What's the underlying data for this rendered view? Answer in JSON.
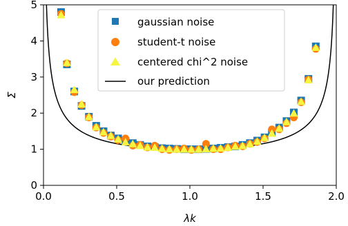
{
  "chart_data": {
    "type": "scatter",
    "title": "",
    "xlabel": "λk",
    "ylabel": "Σ",
    "xlim": [
      0.0,
      2.0
    ],
    "ylim": [
      0,
      5
    ],
    "x_ticks": [
      0.0,
      0.5,
      1.0,
      1.5,
      2.0
    ],
    "x_tick_labels": [
      "0.0",
      "0.5",
      "1.0",
      "1.5",
      "2.0"
    ],
    "y_ticks": [
      0,
      1,
      2,
      3,
      4,
      5
    ],
    "y_tick_labels": [
      "0",
      "1",
      "2",
      "3",
      "4",
      "5"
    ],
    "grid": false,
    "legend_position": "top-center",
    "series": [
      {
        "name": "gaussian noise",
        "marker": "square",
        "color": "#1f77b4",
        "points": [
          [
            0.12,
            4.8
          ],
          [
            0.16,
            3.35
          ],
          [
            0.21,
            2.6
          ],
          [
            0.26,
            2.2
          ],
          [
            0.31,
            1.9
          ],
          [
            0.36,
            1.65
          ],
          [
            0.41,
            1.5
          ],
          [
            0.46,
            1.38
          ],
          [
            0.51,
            1.3
          ],
          [
            0.56,
            1.22
          ],
          [
            0.61,
            1.17
          ],
          [
            0.66,
            1.12
          ],
          [
            0.71,
            1.08
          ],
          [
            0.76,
            1.06
          ],
          [
            0.81,
            1.03
          ],
          [
            0.86,
            1.02
          ],
          [
            0.91,
            1.01
          ],
          [
            0.96,
            1.0
          ],
          [
            1.01,
            1.0
          ],
          [
            1.06,
            1.0
          ],
          [
            1.11,
            1.01
          ],
          [
            1.16,
            1.02
          ],
          [
            1.21,
            1.04
          ],
          [
            1.26,
            1.06
          ],
          [
            1.31,
            1.08
          ],
          [
            1.36,
            1.12
          ],
          [
            1.41,
            1.17
          ],
          [
            1.46,
            1.24
          ],
          [
            1.51,
            1.33
          ],
          [
            1.56,
            1.45
          ],
          [
            1.61,
            1.6
          ],
          [
            1.66,
            1.78
          ],
          [
            1.71,
            2.02
          ],
          [
            1.76,
            2.35
          ],
          [
            1.81,
            2.95
          ],
          [
            1.86,
            3.85
          ]
        ]
      },
      {
        "name": "student-t noise",
        "marker": "circle",
        "color": "#ff7f0e",
        "points": [
          [
            0.12,
            4.75
          ],
          [
            0.16,
            3.38
          ],
          [
            0.21,
            2.58
          ],
          [
            0.26,
            2.22
          ],
          [
            0.31,
            1.88
          ],
          [
            0.36,
            1.6
          ],
          [
            0.41,
            1.45
          ],
          [
            0.46,
            1.35
          ],
          [
            0.51,
            1.25
          ],
          [
            0.56,
            1.3
          ],
          [
            0.61,
            1.1
          ],
          [
            0.66,
            1.12
          ],
          [
            0.71,
            1.05
          ],
          [
            0.76,
            1.1
          ],
          [
            0.81,
            1.0
          ],
          [
            0.86,
            0.98
          ],
          [
            0.91,
            1.0
          ],
          [
            0.96,
            1.02
          ],
          [
            1.01,
            0.98
          ],
          [
            1.06,
            1.0
          ],
          [
            1.11,
            1.15
          ],
          [
            1.16,
            1.0
          ],
          [
            1.21,
            1.0
          ],
          [
            1.26,
            1.05
          ],
          [
            1.31,
            1.1
          ],
          [
            1.36,
            1.08
          ],
          [
            1.41,
            1.15
          ],
          [
            1.46,
            1.2
          ],
          [
            1.51,
            1.3
          ],
          [
            1.56,
            1.55
          ],
          [
            1.61,
            1.55
          ],
          [
            1.66,
            1.72
          ],
          [
            1.71,
            1.88
          ],
          [
            1.76,
            2.3
          ],
          [
            1.81,
            2.93
          ],
          [
            1.86,
            3.78
          ]
        ]
      },
      {
        "name": "centered chi^2 noise",
        "marker": "triangle",
        "color": "#f5f542",
        "points": [
          [
            0.12,
            4.72
          ],
          [
            0.16,
            3.4
          ],
          [
            0.21,
            2.65
          ],
          [
            0.26,
            2.25
          ],
          [
            0.31,
            1.9
          ],
          [
            0.36,
            1.62
          ],
          [
            0.41,
            1.48
          ],
          [
            0.46,
            1.38
          ],
          [
            0.51,
            1.28
          ],
          [
            0.56,
            1.2
          ],
          [
            0.61,
            1.15
          ],
          [
            0.66,
            1.1
          ],
          [
            0.71,
            1.06
          ],
          [
            0.76,
            1.05
          ],
          [
            0.81,
            1.02
          ],
          [
            0.86,
            1.01
          ],
          [
            0.91,
            1.0
          ],
          [
            0.96,
            1.0
          ],
          [
            1.01,
            1.0
          ],
          [
            1.06,
            1.0
          ],
          [
            1.11,
            1.01
          ],
          [
            1.16,
            1.02
          ],
          [
            1.21,
            1.03
          ],
          [
            1.26,
            1.05
          ],
          [
            1.31,
            1.08
          ],
          [
            1.36,
            1.1
          ],
          [
            1.41,
            1.15
          ],
          [
            1.46,
            1.22
          ],
          [
            1.51,
            1.32
          ],
          [
            1.56,
            1.44
          ],
          [
            1.61,
            1.58
          ],
          [
            1.66,
            1.76
          ],
          [
            1.71,
            2.0
          ],
          [
            1.76,
            2.32
          ],
          [
            1.81,
            2.92
          ],
          [
            1.86,
            3.82
          ]
        ]
      }
    ],
    "prediction": {
      "name": "our prediction",
      "color": "#000000",
      "formula": "1/sqrt(x*(2-x))"
    }
  }
}
